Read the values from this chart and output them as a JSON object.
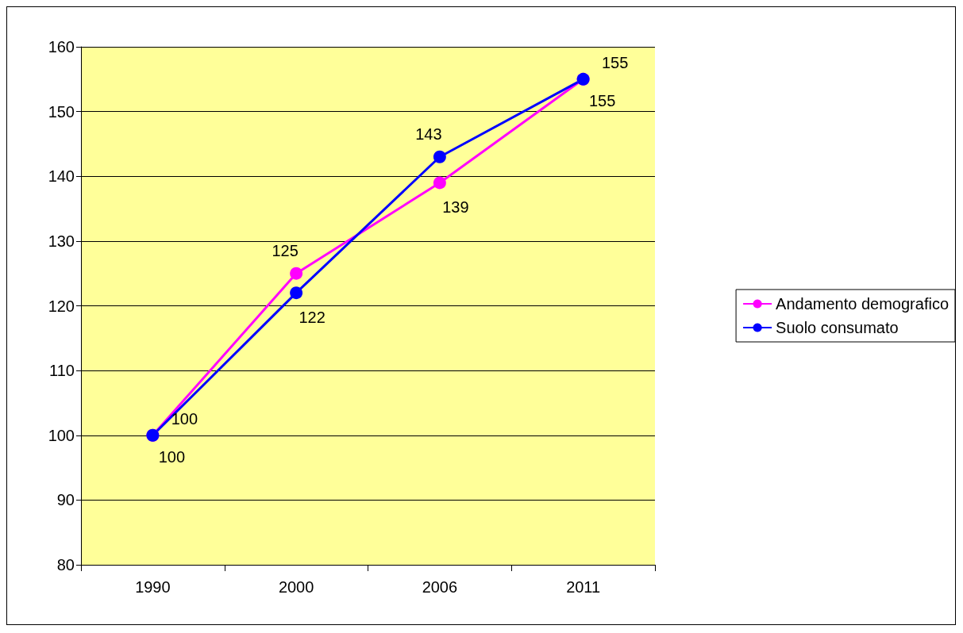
{
  "chart_data": {
    "type": "line",
    "categories": [
      "1990",
      "2000",
      "2006",
      "2011"
    ],
    "series": [
      {
        "name": "Andamento demografico",
        "color": "#ff00ff",
        "values": [
          100,
          125,
          139,
          155
        ]
      },
      {
        "name": "Suolo consumato",
        "color": "#0000ff",
        "values": [
          100,
          122,
          143,
          155
        ]
      }
    ],
    "ylim": [
      80,
      160
    ],
    "yticks": [
      80,
      90,
      100,
      110,
      120,
      130,
      140,
      150,
      160
    ],
    "grid": "y",
    "legend": "right",
    "marker": "circle",
    "line_style": "solid",
    "data_labels": true
  }
}
